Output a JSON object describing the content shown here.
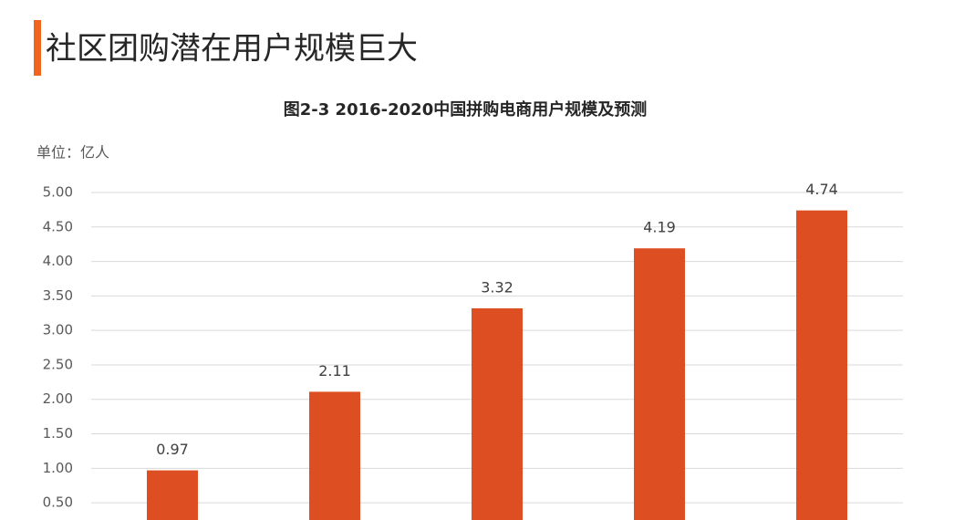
{
  "header": {
    "title": "社区团购潜在用户规模巨大"
  },
  "chart_data": {
    "type": "bar",
    "title": "图2-3 2016-2020中国拼购电商用户规模及预测",
    "unit_label": "单位：亿人",
    "categories": [
      null,
      null,
      null,
      null,
      null
    ],
    "values": [
      0.97,
      2.11,
      3.32,
      4.19,
      4.74
    ],
    "color": "#dd4f22",
    "ylim": [
      0.25,
      5
    ],
    "yticks": [
      {
        "value": 0.5,
        "label": "0.50"
      },
      {
        "value": 1,
        "label": "1.00"
      },
      {
        "value": 1.5,
        "label": "1.50"
      },
      {
        "value": 2,
        "label": "2.00"
      },
      {
        "value": 2.5,
        "label": "2.50"
      },
      {
        "value": 3,
        "label": "3.00"
      },
      {
        "value": 3.5,
        "label": "3.50"
      },
      {
        "value": 4,
        "label": "4.00"
      },
      {
        "value": 4.5,
        "label": "4.50"
      },
      {
        "value": 5,
        "label": "5.00"
      }
    ],
    "grid": true
  }
}
